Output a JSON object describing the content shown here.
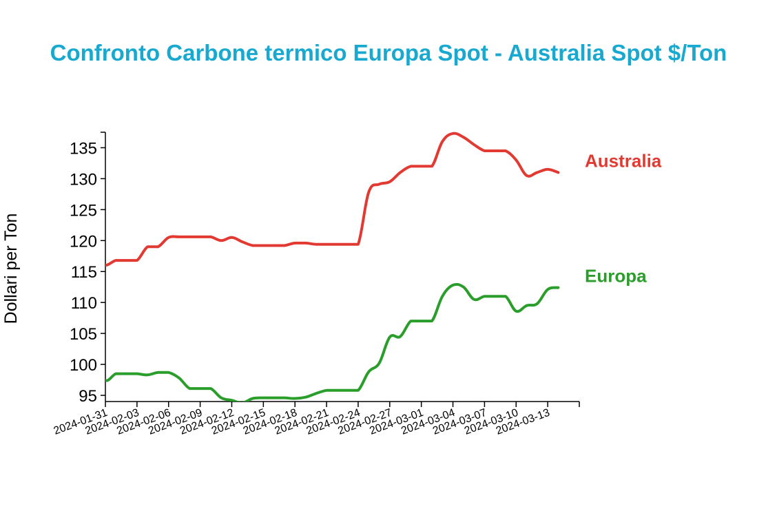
{
  "chart_data": {
    "type": "line",
    "title": "Confronto Carbone termico Europa Spot - Australia Spot $/Ton",
    "xlabel": "",
    "ylabel": "Dollari per Ton",
    "ylim": [
      94,
      137.5
    ],
    "yticks": [
      95,
      100,
      105,
      110,
      115,
      120,
      125,
      130,
      135
    ],
    "xlim": [
      "2024-01-31",
      "2024-03-16"
    ],
    "xticks": [
      "2024-01-31",
      "2024-02-03",
      "2024-02-06",
      "2024-02-09",
      "2024-02-12",
      "2024-02-15",
      "2024-02-18",
      "2024-02-21",
      "2024-02-24",
      "2024-02-27",
      "2024-03-01",
      "2024-03-04",
      "2024-03-07",
      "2024-03-10",
      "2024-03-13"
    ],
    "grid": false,
    "legend": "inline labels at line ends",
    "series": [
      {
        "name": "Australia",
        "color": "#e23a32",
        "x": [
          "2024-01-30",
          "2024-01-31",
          "2024-02-01",
          "2024-02-02",
          "2024-02-03",
          "2024-02-04",
          "2024-02-05",
          "2024-02-06",
          "2024-02-07",
          "2024-02-08",
          "2024-02-09",
          "2024-02-10",
          "2024-02-11",
          "2024-02-12",
          "2024-02-13",
          "2024-02-14",
          "2024-02-15",
          "2024-02-16",
          "2024-02-17",
          "2024-02-18",
          "2024-02-19",
          "2024-02-20",
          "2024-02-21",
          "2024-02-22",
          "2024-02-23",
          "2024-02-24",
          "2024-02-25",
          "2024-02-26",
          "2024-02-27",
          "2024-02-28",
          "2024-02-29",
          "2024-03-01",
          "2024-03-02",
          "2024-03-03",
          "2024-03-04",
          "2024-03-05",
          "2024-03-06",
          "2024-03-07",
          "2024-03-08",
          "2024-03-09",
          "2024-03-10",
          "2024-03-11",
          "2024-03-12",
          "2024-03-13",
          "2024-03-14"
        ],
        "values": [
          116.5,
          116,
          116.8,
          116.8,
          116.8,
          119,
          119,
          120.5,
          120.6,
          120.6,
          120.6,
          120.6,
          120,
          120.5,
          119.8,
          119.2,
          119.2,
          119.2,
          119.2,
          119.6,
          119.6,
          119.4,
          119.4,
          119.4,
          119.4,
          119.4,
          127.8,
          129.1,
          129.5,
          131,
          132,
          132,
          132,
          136,
          137.3,
          136.7,
          135.5,
          134.5,
          134.5,
          134.5,
          133,
          130.5,
          131,
          131.5,
          131
        ]
      },
      {
        "name": "Europa",
        "color": "#2a9e2a",
        "x": [
          "2024-01-30",
          "2024-01-31",
          "2024-02-01",
          "2024-02-02",
          "2024-02-03",
          "2024-02-04",
          "2024-02-05",
          "2024-02-06",
          "2024-02-07",
          "2024-02-08",
          "2024-02-09",
          "2024-02-10",
          "2024-02-11",
          "2024-02-12",
          "2024-02-13",
          "2024-02-14",
          "2024-02-15",
          "2024-02-16",
          "2024-02-17",
          "2024-02-18",
          "2024-02-19",
          "2024-02-20",
          "2024-02-21",
          "2024-02-22",
          "2024-02-23",
          "2024-02-24",
          "2024-02-25",
          "2024-02-26",
          "2024-02-27",
          "2024-02-28",
          "2024-02-29",
          "2024-03-01",
          "2024-03-02",
          "2024-03-03",
          "2024-03-04",
          "2024-03-05",
          "2024-03-06",
          "2024-03-07",
          "2024-03-08",
          "2024-03-09",
          "2024-03-10",
          "2024-03-11",
          "2024-03-12",
          "2024-03-13",
          "2024-03-14"
        ],
        "values": [
          99.8,
          97.4,
          98.5,
          98.5,
          98.5,
          98.3,
          98.7,
          98.7,
          97.8,
          96.1,
          96.1,
          96.1,
          94.6,
          94.2,
          93.8,
          94.5,
          94.6,
          94.6,
          94.6,
          94.5,
          94.7,
          95.3,
          95.8,
          95.8,
          95.8,
          95.8,
          98.8,
          100.2,
          104.4,
          104.5,
          107,
          107,
          107,
          111,
          112.8,
          112.5,
          110.5,
          111,
          111,
          111,
          108.6,
          109.5,
          109.8,
          112.1,
          112.4
        ]
      }
    ]
  }
}
